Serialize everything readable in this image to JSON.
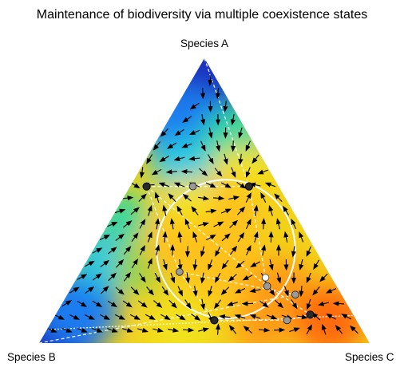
{
  "chart_data": {
    "type": "ternary-vector-field",
    "title": "Maintenance of biodiversity via multiple coexistence states",
    "vertex_labels": {
      "top": "Species A",
      "bottom_left": "Species B",
      "bottom_right": "Species C"
    },
    "colormap": [
      "#1a2fbf",
      "#1e7cf0",
      "#27c9e0",
      "#2ed7a0",
      "#8ed24a",
      "#f2e21a",
      "#ffc21a",
      "#ff9c14",
      "#ff6a10"
    ],
    "field_color_scale": "jet-like: blue (low) to orange/red (high)",
    "equilibria_stable": [
      {
        "A": 0.55,
        "B": 0.4,
        "C": 0.05
      },
      {
        "A": 0.55,
        "B": 0.09,
        "C": 0.36
      },
      {
        "A": 0.08,
        "B": 0.43,
        "C": 0.49
      },
      {
        "A": 0.1,
        "B": 0.13,
        "C": 0.77
      }
    ],
    "equilibria_saddle": [
      {
        "A": 0.55,
        "B": 0.26,
        "C": 0.19
      },
      {
        "A": 0.25,
        "B": 0.45,
        "C": 0.3
      },
      {
        "A": 0.2,
        "B": 0.21,
        "C": 0.59
      },
      {
        "A": 0.17,
        "B": 0.14,
        "C": 0.69
      },
      {
        "A": 0.08,
        "B": 0.21,
        "C": 0.71
      }
    ],
    "equilibria_interior": [
      {
        "A": 0.23,
        "B": 0.2,
        "C": 0.57
      }
    ],
    "invariant_circle": {
      "center": {
        "A": 0.33,
        "B": 0.27,
        "C": 0.4
      },
      "radius_fraction": 0.21
    },
    "guide_lines": "white dashed lines joining equilibria"
  }
}
